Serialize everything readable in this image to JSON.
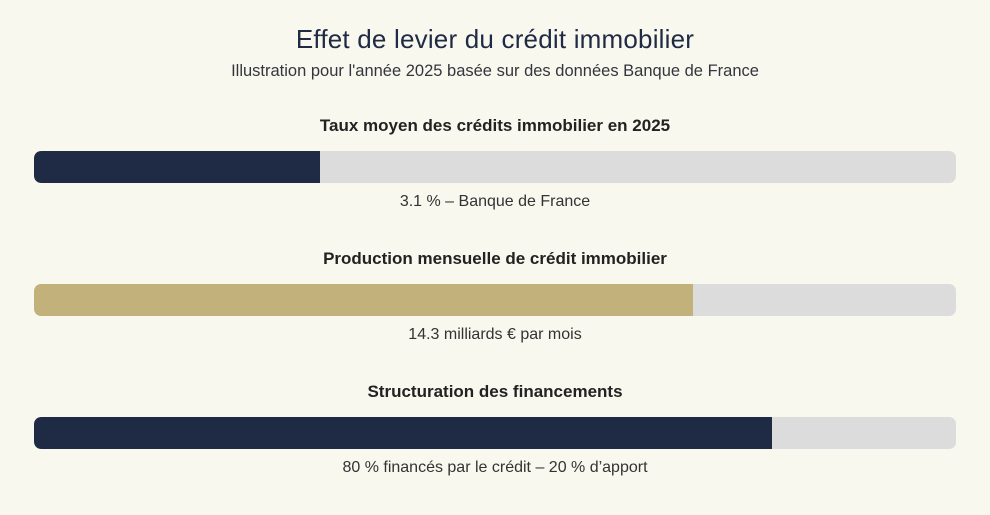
{
  "page": {
    "title": "Effet de levier du crédit immobilier",
    "subtitle": "Illustration pour l'année 2025 basée sur des données Banque de France"
  },
  "colors": {
    "background": "#F8F8EE",
    "navy": "#1F2A44",
    "gold": "#C2B17A",
    "track": "#DCDCDC",
    "title_text": "#1F2A44",
    "heading_text": "#222222",
    "caption_text": "#333333"
  },
  "sections": [
    {
      "heading": "Taux moyen des crédits immobilier en 2025",
      "caption": "3.1 % – Banque de France",
      "fill_pct": 31,
      "fill_color": "#1F2A44"
    },
    {
      "heading": "Production mensuelle de crédit immobilier",
      "caption": "14.3 milliards € par mois",
      "fill_pct": 71.5,
      "fill_color": "#C2B17A"
    },
    {
      "heading": "Structuration des financements",
      "caption": "80 % financés par le crédit – 20 % d’apport",
      "fill_pct": 80,
      "fill_color": "#1F2A44"
    }
  ],
  "chart_data": {
    "type": "bar",
    "orientation": "horizontal",
    "title": "Effet de levier du crédit immobilier",
    "subtitle": "Illustration pour l'année 2025 basée sur des données Banque de France",
    "grid": false,
    "legend": "none",
    "track_color": "#DCDCDC",
    "bars": [
      {
        "category": "Taux moyen des crédits immobilier en 2025",
        "value": 3.1,
        "unit": "%",
        "annotation": "3.1 % – Banque de France",
        "fill_percent_of_track": 31,
        "color": "#1F2A44"
      },
      {
        "category": "Production mensuelle de crédit immobilier",
        "value": 14.3,
        "unit": "milliards € par mois",
        "annotation": "14.3 milliards € par mois",
        "fill_percent_of_track": 71.5,
        "color": "#C2B17A"
      },
      {
        "category": "Structuration des financements",
        "value": 80,
        "unit": "%",
        "annotation": "80 % financés par le crédit – 20 % d’apport",
        "fill_percent_of_track": 80,
        "color": "#1F2A44"
      }
    ]
  }
}
